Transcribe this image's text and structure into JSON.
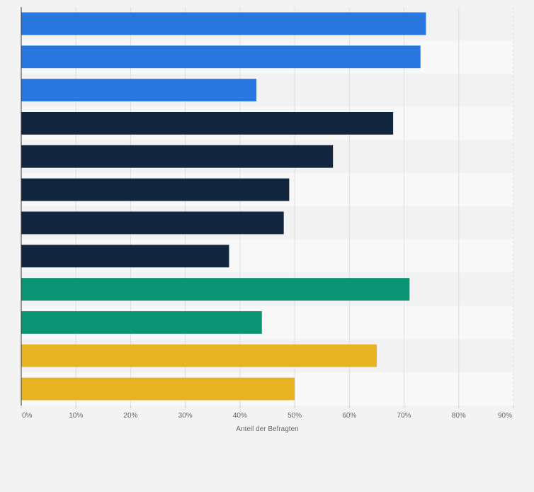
{
  "chart_data": {
    "type": "bar",
    "orientation": "horizontal",
    "categories": [
      "",
      "",
      "",
      "",
      "",
      "",
      "",
      "",
      "",
      "",
      "",
      ""
    ],
    "values": [
      74,
      73,
      43,
      68,
      57,
      49,
      48,
      38,
      71,
      44,
      65,
      50
    ],
    "bar_colors": [
      "#2878e0",
      "#2878e0",
      "#2878e0",
      "#13263f",
      "#13263f",
      "#13263f",
      "#13263f",
      "#13263f",
      "#0a9474",
      "#0a9474",
      "#e8b323",
      "#e8b323"
    ],
    "xlim": [
      0,
      90
    ],
    "xticks": [
      0,
      10,
      20,
      30,
      40,
      50,
      60,
      70,
      80,
      90
    ],
    "xtick_labels": [
      "0%",
      "10%",
      "20%",
      "30%",
      "40%",
      "50%",
      "60%",
      "70%",
      "80%",
      "90%"
    ],
    "xlabel": "Anteil der Befragten",
    "ylabel": "",
    "title": "",
    "grid": true,
    "legend": "none"
  }
}
